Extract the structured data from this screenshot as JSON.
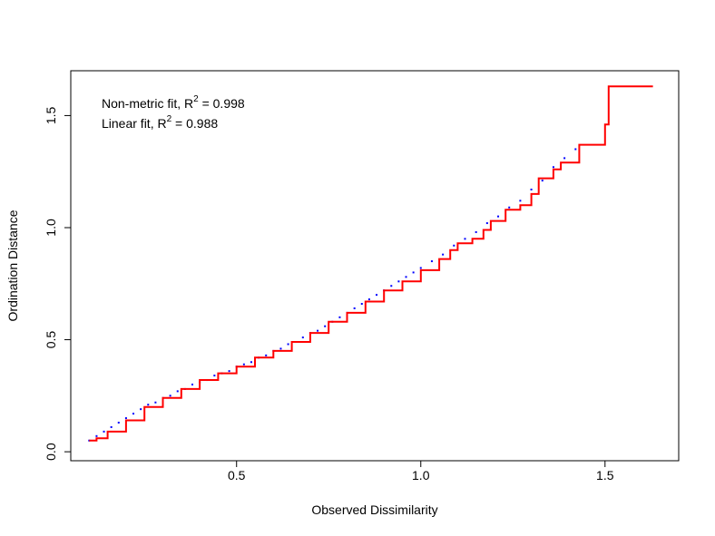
{
  "chart_data": {
    "type": "scatter",
    "title": "",
    "xlabel": "Observed Dissimilarity",
    "ylabel": "Ordination Distance",
    "xlim": [
      0.05,
      1.7
    ],
    "ylim": [
      -0.04,
      1.7
    ],
    "xticks": [
      0.5,
      1.0,
      1.5
    ],
    "xtick_labels": [
      "0.5",
      "1.0",
      "1.5"
    ],
    "yticks": [
      0.0,
      0.5,
      1.0,
      1.5
    ],
    "ytick_labels": [
      "0.0",
      "0.5",
      "1.0",
      "1.5"
    ],
    "grid": false,
    "annotations": [
      {
        "prefix": "Non-metric fit, R",
        "sup": "2",
        "suffix": " = 0.998"
      },
      {
        "prefix": "Linear fit, R",
        "sup": "2",
        "suffix": " = 0.988"
      }
    ],
    "series": [
      {
        "type": "scatter",
        "color": "#0000ff",
        "description_points": "dense band of observed pairs",
        "points": [
          [
            0.1,
            0.05
          ],
          [
            0.12,
            0.07
          ],
          [
            0.14,
            0.09
          ],
          [
            0.16,
            0.11
          ],
          [
            0.18,
            0.13
          ],
          [
            0.2,
            0.15
          ],
          [
            0.22,
            0.17
          ],
          [
            0.24,
            0.19
          ],
          [
            0.26,
            0.21
          ],
          [
            0.28,
            0.22
          ],
          [
            0.3,
            0.24
          ],
          [
            0.32,
            0.25
          ],
          [
            0.34,
            0.27
          ],
          [
            0.36,
            0.28
          ],
          [
            0.38,
            0.3
          ],
          [
            0.4,
            0.31
          ],
          [
            0.42,
            0.32
          ],
          [
            0.44,
            0.34
          ],
          [
            0.46,
            0.35
          ],
          [
            0.48,
            0.36
          ],
          [
            0.5,
            0.38
          ],
          [
            0.52,
            0.39
          ],
          [
            0.54,
            0.4
          ],
          [
            0.56,
            0.42
          ],
          [
            0.58,
            0.43
          ],
          [
            0.6,
            0.45
          ],
          [
            0.62,
            0.46
          ],
          [
            0.64,
            0.48
          ],
          [
            0.66,
            0.49
          ],
          [
            0.68,
            0.51
          ],
          [
            0.7,
            0.53
          ],
          [
            0.72,
            0.54
          ],
          [
            0.74,
            0.56
          ],
          [
            0.76,
            0.58
          ],
          [
            0.78,
            0.6
          ],
          [
            0.8,
            0.62
          ],
          [
            0.82,
            0.64
          ],
          [
            0.84,
            0.66
          ],
          [
            0.86,
            0.68
          ],
          [
            0.88,
            0.7
          ],
          [
            0.9,
            0.72
          ],
          [
            0.92,
            0.74
          ],
          [
            0.94,
            0.76
          ],
          [
            0.96,
            0.78
          ],
          [
            0.98,
            0.8
          ],
          [
            1.0,
            0.82
          ],
          [
            1.03,
            0.85
          ],
          [
            1.06,
            0.88
          ],
          [
            1.09,
            0.92
          ],
          [
            1.12,
            0.95
          ],
          [
            1.15,
            0.98
          ],
          [
            1.18,
            1.02
          ],
          [
            1.21,
            1.05
          ],
          [
            1.24,
            1.09
          ],
          [
            1.27,
            1.12
          ],
          [
            1.3,
            1.17
          ],
          [
            1.33,
            1.21
          ],
          [
            1.36,
            1.27
          ],
          [
            1.39,
            1.31
          ],
          [
            1.42,
            1.35
          ]
        ]
      },
      {
        "type": "step",
        "name": "Non-metric fit",
        "color": "#ff0000",
        "x": [
          0.1,
          0.12,
          0.15,
          0.2,
          0.25,
          0.3,
          0.35,
          0.4,
          0.45,
          0.5,
          0.55,
          0.6,
          0.65,
          0.7,
          0.75,
          0.8,
          0.85,
          0.9,
          0.95,
          1.0,
          1.05,
          1.08,
          1.1,
          1.14,
          1.17,
          1.19,
          1.23,
          1.27,
          1.3,
          1.32,
          1.36,
          1.38,
          1.43,
          1.5,
          1.51,
          1.63
        ],
        "y": [
          0.05,
          0.06,
          0.09,
          0.14,
          0.2,
          0.24,
          0.28,
          0.32,
          0.35,
          0.38,
          0.42,
          0.45,
          0.49,
          0.53,
          0.58,
          0.62,
          0.67,
          0.72,
          0.76,
          0.81,
          0.86,
          0.9,
          0.93,
          0.95,
          0.99,
          1.03,
          1.08,
          1.1,
          1.15,
          1.22,
          1.26,
          1.29,
          1.37,
          1.46,
          1.63,
          1.63
        ]
      }
    ]
  }
}
